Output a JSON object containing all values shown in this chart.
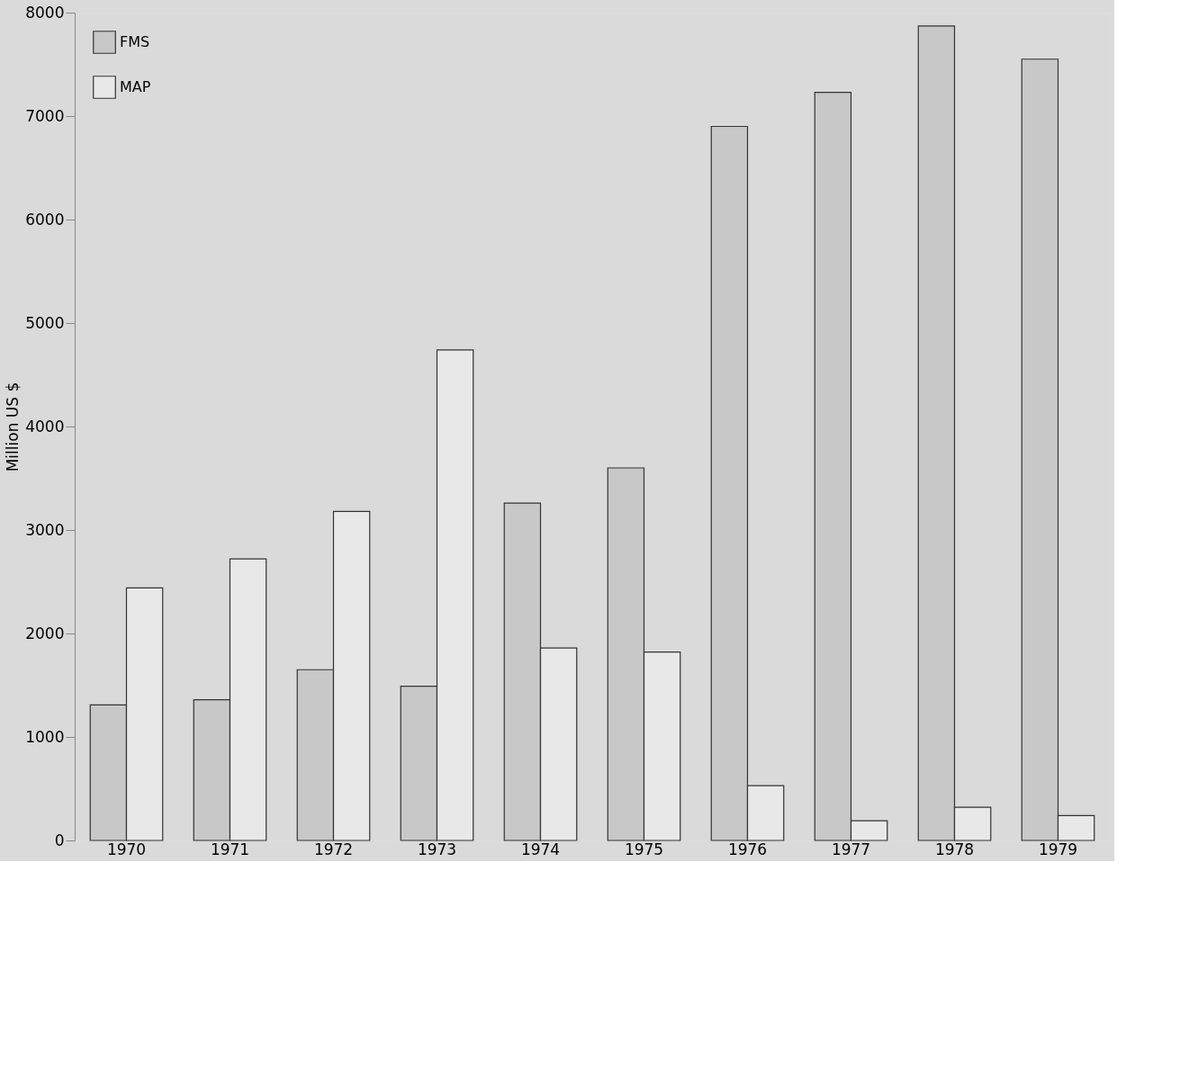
{
  "chart_data": {
    "type": "bar",
    "ylabel": "Million US $",
    "categories": [
      "1970",
      "1971",
      "1972",
      "1973",
      "1974",
      "1975",
      "1976",
      "1977",
      "1978",
      "1979"
    ],
    "series": [
      {
        "name": "FMS",
        "color": "#c8c8c8",
        "values": [
          1310,
          1360,
          1650,
          1490,
          3260,
          3600,
          6900,
          7230,
          7870,
          7550
        ]
      },
      {
        "name": "MAP",
        "color": "#e8e8e8",
        "values": [
          2440,
          2720,
          3180,
          4740,
          1860,
          1820,
          530,
          190,
          320,
          240
        ]
      }
    ],
    "ylim": [
      0,
      8000
    ],
    "yticks": [
      0,
      1000,
      2000,
      3000,
      4000,
      5000,
      6000,
      7000,
      8000
    ],
    "legend": "top left"
  }
}
